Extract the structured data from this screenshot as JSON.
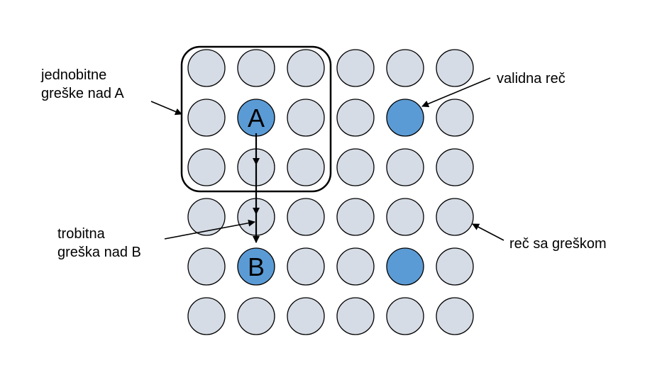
{
  "colors": {
    "word_fill": "#d6dce5",
    "valid_fill": "#5b9bd5",
    "stroke": "#000000"
  },
  "grid": {
    "rows": 6,
    "cols": 6,
    "valid_words": [
      {
        "row": 1,
        "col": 1,
        "label": "A"
      },
      {
        "row": 1,
        "col": 4,
        "label": ""
      },
      {
        "row": 4,
        "col": 1,
        "label": "B"
      },
      {
        "row": 4,
        "col": 4,
        "label": ""
      }
    ]
  },
  "labels": {
    "single_bit": [
      "jednobitne",
      "greške nad A"
    ],
    "valid_word": "validna reč",
    "triple_bit": [
      "trobitna",
      "greška nad B"
    ],
    "error_word": "reč sa greškom"
  }
}
